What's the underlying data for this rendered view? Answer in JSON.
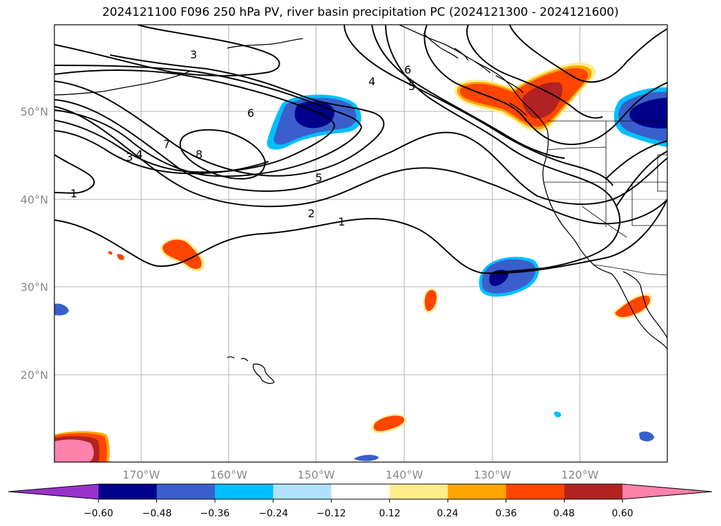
{
  "title": "2024121100 F096 250 hPa PV, river basin precipitation PC (2024121300 - 2024121600)",
  "map": {
    "lat_labels": [
      "50°N",
      "40°N",
      "30°N",
      "20°N"
    ],
    "lon_labels": [
      "170°W",
      "160°W",
      "150°W",
      "140°W",
      "130°W",
      "120°W"
    ],
    "contour_labels": [
      "1",
      "1",
      "2",
      "3",
      "3",
      "4",
      "4",
      "5",
      "5",
      "6",
      "6",
      "7",
      "8"
    ]
  },
  "colorbar": {
    "ticks": [
      "−0.60",
      "−0.48",
      "−0.36",
      "−0.24",
      "−0.12",
      "0.12",
      "0.24",
      "0.36",
      "0.48",
      "0.60"
    ],
    "colors": [
      "#9932CC",
      "#00008B",
      "#3A5FCD",
      "#00BFFF",
      "#B0E2FF",
      "#FFFFFF",
      "#FFEC8B",
      "#FFA500",
      "#FF4500",
      "#B22222",
      "#FF82AB"
    ]
  }
}
